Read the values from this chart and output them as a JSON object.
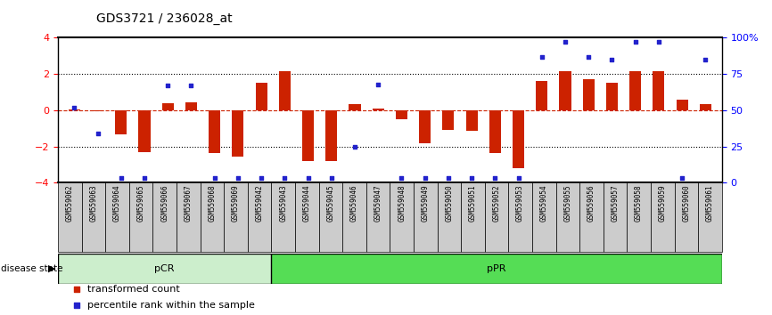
{
  "title": "GDS3721 / 236028_at",
  "samples": [
    "GSM559062",
    "GSM559063",
    "GSM559064",
    "GSM559065",
    "GSM559066",
    "GSM559067",
    "GSM559068",
    "GSM559069",
    "GSM559042",
    "GSM559043",
    "GSM559044",
    "GSM559045",
    "GSM559046",
    "GSM559047",
    "GSM559048",
    "GSM559049",
    "GSM559050",
    "GSM559051",
    "GSM559052",
    "GSM559053",
    "GSM559054",
    "GSM559055",
    "GSM559056",
    "GSM559057",
    "GSM559058",
    "GSM559059",
    "GSM559060",
    "GSM559061"
  ],
  "transformed_count": [
    0.05,
    -0.05,
    -1.35,
    -2.3,
    0.4,
    0.45,
    -2.35,
    -2.55,
    1.5,
    2.15,
    -2.8,
    -2.8,
    0.35,
    0.1,
    -0.5,
    -1.8,
    -1.1,
    -1.15,
    -2.35,
    -3.2,
    1.6,
    2.15,
    1.7,
    1.5,
    2.15,
    2.15,
    0.6,
    0.35
  ],
  "percentile_rank": [
    52,
    34,
    3,
    3,
    67,
    67,
    3,
    3,
    3,
    3,
    3,
    3,
    25,
    68,
    3,
    3,
    3,
    3,
    3,
    3,
    87,
    97,
    87,
    85,
    97,
    97,
    3,
    85
  ],
  "pCR_count": 9,
  "pPR_count": 19,
  "bar_color": "#CC2200",
  "dot_color": "#2222CC",
  "pCR_color": "#CCEECC",
  "pPR_color": "#55DD55",
  "ylim": [
    -4,
    4
  ],
  "y2lim": [
    0,
    100
  ],
  "yticks": [
    -4,
    -2,
    0,
    2,
    4
  ],
  "y2ticks": [
    0,
    25,
    50,
    75,
    100
  ],
  "y2ticklabels": [
    "0",
    "25",
    "50",
    "75",
    "100%"
  ],
  "dotted_lines": [
    -2,
    2
  ],
  "zero_line_color": "#CC2200",
  "legend_bar": "transformed count",
  "legend_dot": "percentile rank within the sample",
  "disease_state_label": "disease state",
  "pCR_label": "pCR",
  "pPR_label": "pPR"
}
